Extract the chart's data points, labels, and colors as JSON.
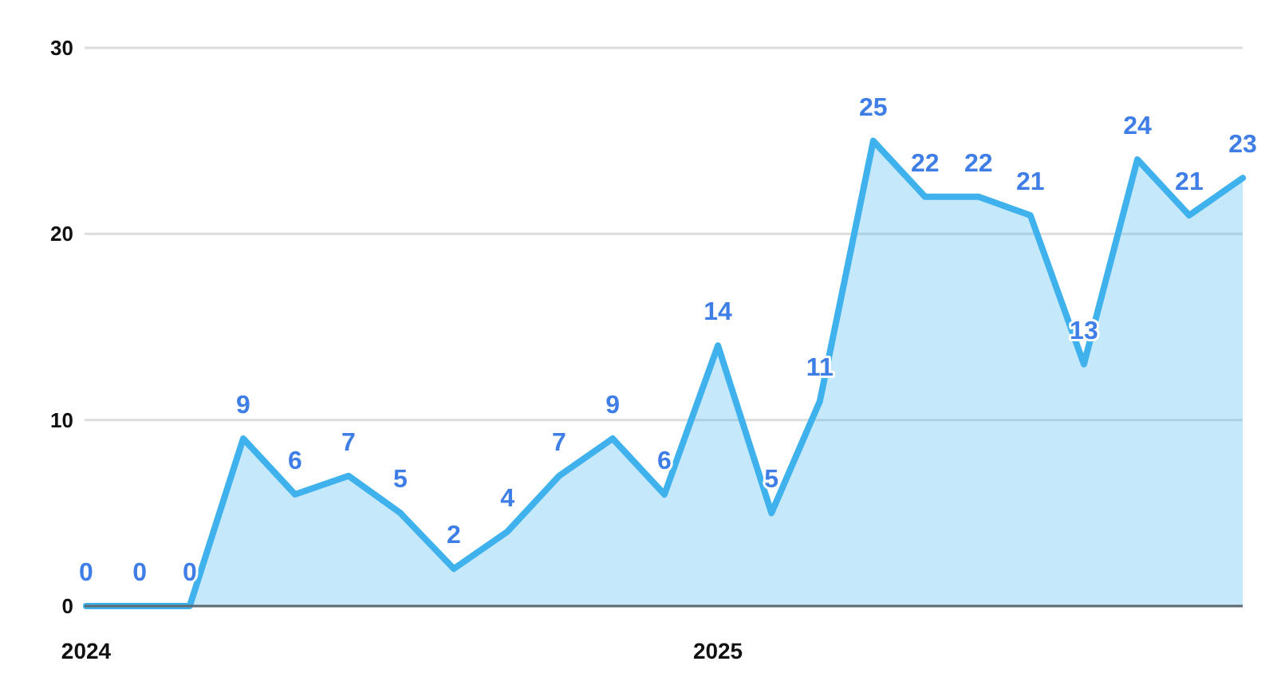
{
  "chart_data": {
    "type": "area",
    "x": [
      "2024-01",
      "2024-02",
      "2024-03",
      "2024-04",
      "2024-05",
      "2024-06",
      "2024-07",
      "2024-08",
      "2024-09",
      "2024-10",
      "2024-11",
      "2024-12",
      "2025-01",
      "2025-02",
      "2025-03",
      "2025-04",
      "2025-05",
      "2025-06",
      "2025-07",
      "2025-08",
      "2025-09",
      "2025-10",
      "2025-11"
    ],
    "values": [
      0,
      0,
      0,
      9,
      6,
      7,
      5,
      2,
      4,
      7,
      9,
      6,
      14,
      5,
      11,
      25,
      22,
      22,
      21,
      13,
      24,
      21,
      23
    ],
    "color": "#3fb2ee",
    "xlim": [
      "2024-01",
      "2025-11"
    ],
    "xticks": [
      "2024",
      "2025"
    ],
    "ylim": [
      0,
      30
    ],
    "yticks": [
      0,
      10,
      20,
      30
    ],
    "grid": "y",
    "data_labels": true
  }
}
